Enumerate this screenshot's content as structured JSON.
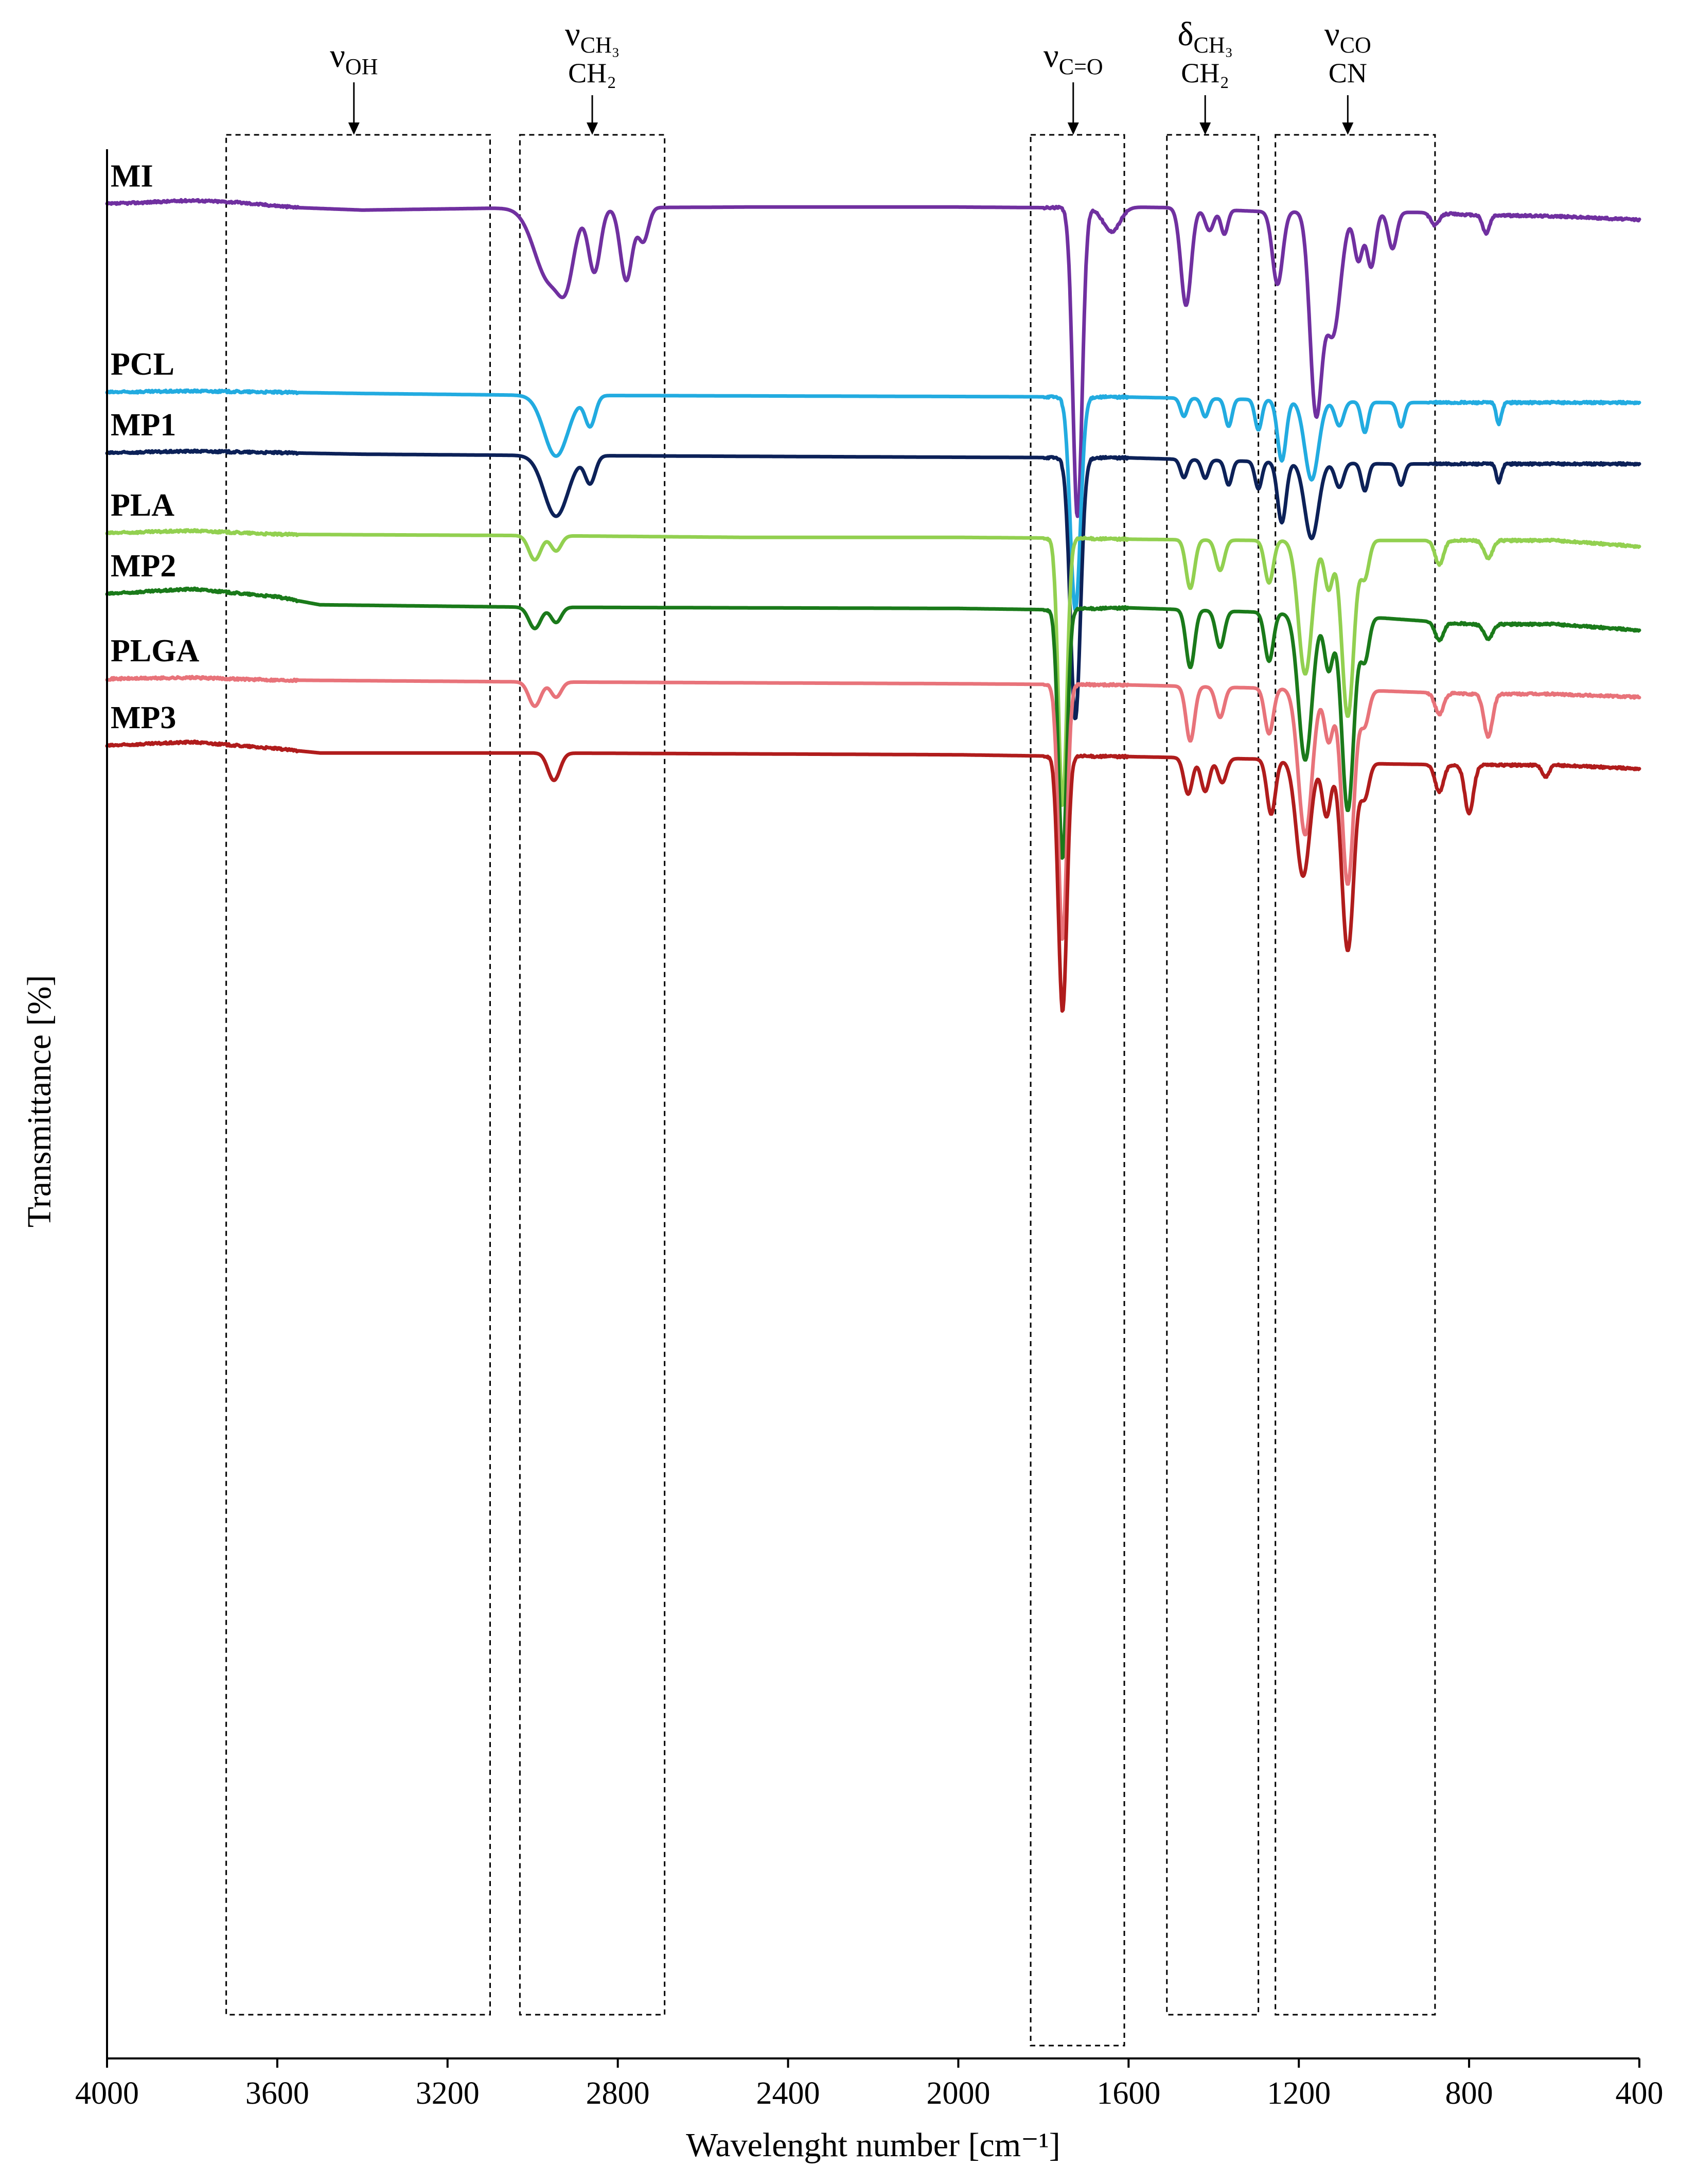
{
  "chart_data": {
    "type": "line",
    "title": "",
    "xlabel": "Wavelenght number [cm⁻¹]",
    "ylabel": "Transmittance [%]",
    "xlim": [
      4000,
      400
    ],
    "x_ticks": [
      4000,
      3600,
      3200,
      2800,
      2400,
      2000,
      1600,
      1200,
      800,
      400
    ],
    "y_ticks_shown": false,
    "grid": false,
    "legend": "none (series labelled at left of each trace)",
    "bands": [
      {
        "id": "voh",
        "main": "ν",
        "sub": "OH",
        "line2": "",
        "range": [
          3720,
          3100
        ],
        "arrow_at": 3420
      },
      {
        "id": "vch",
        "main": "ν",
        "sub": "CH₃",
        "line2": "CH₂",
        "range": [
          3030,
          2690
        ],
        "arrow_at": 2860
      },
      {
        "id": "vco",
        "main": "ν",
        "sub": "C=O",
        "line2": "",
        "range": [
          1830,
          1610
        ],
        "arrow_at": 1730
      },
      {
        "id": "dch",
        "main": "δ",
        "sub": "CH₃",
        "line2": "CH₂",
        "range": [
          1510,
          1295
        ],
        "arrow_at": 1420
      },
      {
        "id": "vcocn",
        "main": "ν",
        "sub": "CO",
        "line2": "CN",
        "range": [
          1255,
          880
        ],
        "arrow_at": 1085
      }
    ],
    "series": [
      {
        "name": "MI",
        "color": "#7030a0",
        "baseline": [
          [
            4000,
            0.92
          ],
          [
            3800,
            0.98
          ],
          [
            3700,
            0.95
          ],
          [
            3550,
            0.86
          ],
          [
            3400,
            0.82
          ],
          [
            3100,
            0.85
          ],
          [
            2500,
            0.87
          ],
          [
            2000,
            0.87
          ],
          [
            1800,
            0.86
          ],
          [
            1600,
            0.87
          ],
          [
            1500,
            0.86
          ],
          [
            1300,
            0.8
          ],
          [
            900,
            0.78
          ],
          [
            800,
            0.74
          ],
          [
            600,
            0.72
          ],
          [
            400,
            0.66
          ]
        ],
        "peaks": [
          [
            2960,
            1.2,
            35
          ],
          [
            2920,
            0.75,
            18
          ],
          [
            2855,
            1.05,
            14
          ],
          [
            2780,
            1.2,
            14
          ],
          [
            2740,
            0.55,
            12
          ],
          [
            1720,
            5.1,
            11
          ],
          [
            1640,
            0.4,
            20
          ],
          [
            1465,
            1.6,
            12
          ],
          [
            1410,
            0.35,
            10
          ],
          [
            1375,
            0.4,
            8
          ],
          [
            1250,
            1.2,
            12
          ],
          [
            1160,
            3.2,
            14
          ],
          [
            1120,
            2.0,
            18
          ],
          [
            1060,
            0.8,
            10
          ],
          [
            1030,
            0.9,
            10
          ],
          [
            980,
            0.6,
            10
          ],
          [
            880,
            0.2,
            10
          ],
          [
            760,
            0.3,
            8
          ]
        ]
      },
      {
        "name": "PCL",
        "color": "#22abe0",
        "baseline": [
          [
            4000,
            -2.18
          ],
          [
            3800,
            -2.16
          ],
          [
            3400,
            -2.2
          ],
          [
            3000,
            -2.23
          ],
          [
            2000,
            -2.25
          ],
          [
            1600,
            -2.26
          ],
          [
            1300,
            -2.3
          ],
          [
            1000,
            -2.35
          ],
          [
            800,
            -2.35
          ],
          [
            400,
            -2.35
          ]
        ],
        "peaks": [
          [
            2945,
            1.0,
            28
          ],
          [
            2865,
            0.5,
            12
          ],
          [
            1725,
            3.5,
            12
          ],
          [
            1470,
            0.3,
            8
          ],
          [
            1420,
            0.3,
            8
          ],
          [
            1365,
            0.45,
            8
          ],
          [
            1295,
            0.5,
            8
          ],
          [
            1240,
            1.0,
            10
          ],
          [
            1170,
            1.3,
            16
          ],
          [
            1105,
            0.4,
            10
          ],
          [
            1045,
            0.5,
            8
          ],
          [
            960,
            0.4,
            8
          ],
          [
            730,
            0.35,
            6
          ]
        ]
      },
      {
        "name": "MP1",
        "color": "#0c2158",
        "baseline": [
          [
            4000,
            -3.18
          ],
          [
            3800,
            -3.15
          ],
          [
            3400,
            -3.2
          ],
          [
            3000,
            -3.22
          ],
          [
            2000,
            -3.25
          ],
          [
            1600,
            -3.26
          ],
          [
            1300,
            -3.32
          ],
          [
            1000,
            -3.36
          ],
          [
            800,
            -3.36
          ],
          [
            400,
            -3.36
          ]
        ],
        "peaks": [
          [
            2945,
            1.0,
            28
          ],
          [
            2865,
            0.45,
            12
          ],
          [
            1725,
            4.3,
            12
          ],
          [
            1470,
            0.3,
            8
          ],
          [
            1420,
            0.3,
            8
          ],
          [
            1365,
            0.4,
            8
          ],
          [
            1295,
            0.45,
            8
          ],
          [
            1240,
            1.0,
            10
          ],
          [
            1170,
            1.25,
            16
          ],
          [
            1105,
            0.4,
            10
          ],
          [
            1045,
            0.45,
            8
          ],
          [
            960,
            0.35,
            8
          ],
          [
            730,
            0.3,
            6
          ]
        ]
      },
      {
        "name": "PLA",
        "color": "#92d050",
        "baseline": [
          [
            4000,
            -4.5
          ],
          [
            3800,
            -4.46
          ],
          [
            3600,
            -4.52
          ],
          [
            3000,
            -4.54
          ],
          [
            2500,
            -4.57
          ],
          [
            2000,
            -4.57
          ],
          [
            1800,
            -4.58
          ],
          [
            1600,
            -4.6
          ],
          [
            1300,
            -4.62
          ],
          [
            1000,
            -4.62
          ],
          [
            800,
            -4.62
          ],
          [
            600,
            -4.62
          ],
          [
            400,
            -4.72
          ]
        ],
        "peaks": [
          [
            2995,
            0.4,
            14
          ],
          [
            2945,
            0.25,
            12
          ],
          [
            1755,
            4.4,
            10
          ],
          [
            1455,
            0.8,
            10
          ],
          [
            1385,
            0.5,
            10
          ],
          [
            1270,
            0.7,
            10
          ],
          [
            1185,
            2.2,
            16
          ],
          [
            1130,
            0.8,
            10
          ],
          [
            1085,
            2.9,
            14
          ],
          [
            1045,
            0.6,
            10
          ],
          [
            870,
            0.4,
            10
          ],
          [
            755,
            0.3,
            10
          ]
        ]
      },
      {
        "name": "MP2",
        "color": "#1a7a1a",
        "baseline": [
          [
            4000,
            -5.5
          ],
          [
            3800,
            -5.42
          ],
          [
            3600,
            -5.55
          ],
          [
            3500,
            -5.68
          ],
          [
            3000,
            -5.72
          ],
          [
            2000,
            -5.74
          ],
          [
            1800,
            -5.76
          ],
          [
            1600,
            -5.73
          ],
          [
            1300,
            -5.8
          ],
          [
            1000,
            -5.9
          ],
          [
            800,
            -6.0
          ],
          [
            600,
            -6.0
          ],
          [
            400,
            -6.1
          ]
        ],
        "peaks": [
          [
            2995,
            0.35,
            14
          ],
          [
            2945,
            0.25,
            12
          ],
          [
            1755,
            4.1,
            10
          ],
          [
            1455,
            0.95,
            10
          ],
          [
            1385,
            0.6,
            10
          ],
          [
            1270,
            0.8,
            10
          ],
          [
            1185,
            2.4,
            16
          ],
          [
            1130,
            0.9,
            10
          ],
          [
            1085,
            3.2,
            14
          ],
          [
            1045,
            0.7,
            10
          ],
          [
            870,
            0.3,
            10
          ],
          [
            755,
            0.25,
            10
          ]
        ]
      },
      {
        "name": "PLGA",
        "color": "#e8737a",
        "baseline": [
          [
            4000,
            -6.9
          ],
          [
            3800,
            -6.88
          ],
          [
            3600,
            -6.92
          ],
          [
            3000,
            -6.95
          ],
          [
            2000,
            -6.98
          ],
          [
            1800,
            -6.99
          ],
          [
            1600,
            -7.0
          ],
          [
            1300,
            -7.05
          ],
          [
            1000,
            -7.1
          ],
          [
            800,
            -7.15
          ],
          [
            600,
            -7.15
          ],
          [
            400,
            -7.2
          ]
        ],
        "peaks": [
          [
            2995,
            0.4,
            14
          ],
          [
            2945,
            0.25,
            12
          ],
          [
            1755,
            4.2,
            10
          ],
          [
            1455,
            0.9,
            10
          ],
          [
            1385,
            0.5,
            10
          ],
          [
            1270,
            0.75,
            10
          ],
          [
            1185,
            2.4,
            16
          ],
          [
            1130,
            0.85,
            10
          ],
          [
            1085,
            3.2,
            14
          ],
          [
            1045,
            0.55,
            10
          ],
          [
            870,
            0.35,
            10
          ],
          [
            755,
            0.7,
            10
          ]
        ]
      },
      {
        "name": "MP3",
        "color": "#b01c1c",
        "baseline": [
          [
            4000,
            -8.0
          ],
          [
            3800,
            -7.94
          ],
          [
            3600,
            -8.05
          ],
          [
            3500,
            -8.12
          ],
          [
            3000,
            -8.12
          ],
          [
            2000,
            -8.15
          ],
          [
            1800,
            -8.17
          ],
          [
            1600,
            -8.18
          ],
          [
            1300,
            -8.22
          ],
          [
            1000,
            -8.3
          ],
          [
            800,
            -8.32
          ],
          [
            600,
            -8.32
          ],
          [
            400,
            -8.38
          ]
        ],
        "peaks": [
          [
            2950,
            0.45,
            14
          ],
          [
            1755,
            4.2,
            10
          ],
          [
            1460,
            0.6,
            10
          ],
          [
            1420,
            0.55,
            10
          ],
          [
            1380,
            0.4,
            10
          ],
          [
            1265,
            0.9,
            10
          ],
          [
            1190,
            1.9,
            16
          ],
          [
            1135,
            0.9,
            10
          ],
          [
            1085,
            3.1,
            14
          ],
          [
            1045,
            0.55,
            10
          ],
          [
            870,
            0.45,
            10
          ],
          [
            800,
            0.8,
            10
          ],
          [
            620,
            0.2,
            8
          ]
        ]
      }
    ]
  }
}
